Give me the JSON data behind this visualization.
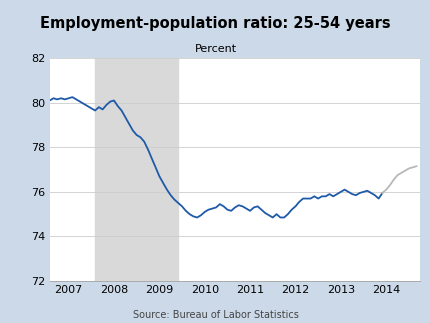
{
  "title": "Employment-population ratio: 25-54 years",
  "subtitle": "Percent",
  "source": "Source: Bureau of Labor Statistics",
  "background_color": "#ccd9e8",
  "plot_background": "#ffffff",
  "recession_color": "#d9d9d9",
  "recession_start": 2007.583,
  "recession_end": 2009.417,
  "ylim": [
    72,
    82
  ],
  "yticks": [
    72,
    74,
    76,
    78,
    80,
    82
  ],
  "xlim": [
    2006.58,
    2014.75
  ],
  "xticks": [
    2007,
    2008,
    2009,
    2010,
    2011,
    2012,
    2013,
    2014
  ],
  "line_color_blue": "#1f5aa8",
  "line_color_gray": "#b8b8b8",
  "gray_start_date": 2013.917,
  "data": [
    [
      2006.583,
      80.1
    ],
    [
      2006.667,
      80.2
    ],
    [
      2006.75,
      80.15
    ],
    [
      2006.833,
      80.2
    ],
    [
      2006.917,
      80.15
    ],
    [
      2007.0,
      80.2
    ],
    [
      2007.083,
      80.25
    ],
    [
      2007.167,
      80.15
    ],
    [
      2007.25,
      80.05
    ],
    [
      2007.333,
      79.95
    ],
    [
      2007.417,
      79.85
    ],
    [
      2007.5,
      79.75
    ],
    [
      2007.583,
      79.65
    ],
    [
      2007.667,
      79.8
    ],
    [
      2007.75,
      79.7
    ],
    [
      2007.833,
      79.9
    ],
    [
      2007.917,
      80.05
    ],
    [
      2008.0,
      80.1
    ],
    [
      2008.083,
      79.85
    ],
    [
      2008.167,
      79.65
    ],
    [
      2008.25,
      79.35
    ],
    [
      2008.333,
      79.05
    ],
    [
      2008.417,
      78.75
    ],
    [
      2008.5,
      78.55
    ],
    [
      2008.583,
      78.45
    ],
    [
      2008.667,
      78.25
    ],
    [
      2008.75,
      77.9
    ],
    [
      2008.833,
      77.5
    ],
    [
      2008.917,
      77.1
    ],
    [
      2009.0,
      76.7
    ],
    [
      2009.083,
      76.4
    ],
    [
      2009.167,
      76.1
    ],
    [
      2009.25,
      75.85
    ],
    [
      2009.333,
      75.65
    ],
    [
      2009.417,
      75.5
    ],
    [
      2009.5,
      75.35
    ],
    [
      2009.583,
      75.15
    ],
    [
      2009.667,
      75.0
    ],
    [
      2009.75,
      74.9
    ],
    [
      2009.833,
      74.85
    ],
    [
      2009.917,
      74.95
    ],
    [
      2010.0,
      75.1
    ],
    [
      2010.083,
      75.2
    ],
    [
      2010.167,
      75.25
    ],
    [
      2010.25,
      75.3
    ],
    [
      2010.333,
      75.45
    ],
    [
      2010.417,
      75.35
    ],
    [
      2010.5,
      75.2
    ],
    [
      2010.583,
      75.15
    ],
    [
      2010.667,
      75.3
    ],
    [
      2010.75,
      75.4
    ],
    [
      2010.833,
      75.35
    ],
    [
      2010.917,
      75.25
    ],
    [
      2011.0,
      75.15
    ],
    [
      2011.083,
      75.3
    ],
    [
      2011.167,
      75.35
    ],
    [
      2011.25,
      75.2
    ],
    [
      2011.333,
      75.05
    ],
    [
      2011.417,
      74.95
    ],
    [
      2011.5,
      74.85
    ],
    [
      2011.583,
      75.0
    ],
    [
      2011.667,
      74.85
    ],
    [
      2011.75,
      74.85
    ],
    [
      2011.833,
      75.0
    ],
    [
      2011.917,
      75.2
    ],
    [
      2012.0,
      75.35
    ],
    [
      2012.083,
      75.55
    ],
    [
      2012.167,
      75.7
    ],
    [
      2012.25,
      75.7
    ],
    [
      2012.333,
      75.7
    ],
    [
      2012.417,
      75.8
    ],
    [
      2012.5,
      75.7
    ],
    [
      2012.583,
      75.8
    ],
    [
      2012.667,
      75.8
    ],
    [
      2012.75,
      75.9
    ],
    [
      2012.833,
      75.8
    ],
    [
      2012.917,
      75.9
    ],
    [
      2013.0,
      76.0
    ],
    [
      2013.083,
      76.1
    ],
    [
      2013.167,
      76.0
    ],
    [
      2013.25,
      75.9
    ],
    [
      2013.333,
      75.85
    ],
    [
      2013.417,
      75.95
    ],
    [
      2013.5,
      76.0
    ],
    [
      2013.583,
      76.05
    ],
    [
      2013.667,
      75.95
    ],
    [
      2013.75,
      75.85
    ],
    [
      2013.833,
      75.7
    ],
    [
      2013.917,
      75.95
    ],
    [
      2014.0,
      76.1
    ],
    [
      2014.083,
      76.3
    ],
    [
      2014.167,
      76.55
    ],
    [
      2014.25,
      76.75
    ],
    [
      2014.333,
      76.85
    ],
    [
      2014.417,
      76.95
    ],
    [
      2014.5,
      77.05
    ],
    [
      2014.583,
      77.1
    ],
    [
      2014.667,
      77.15
    ]
  ]
}
